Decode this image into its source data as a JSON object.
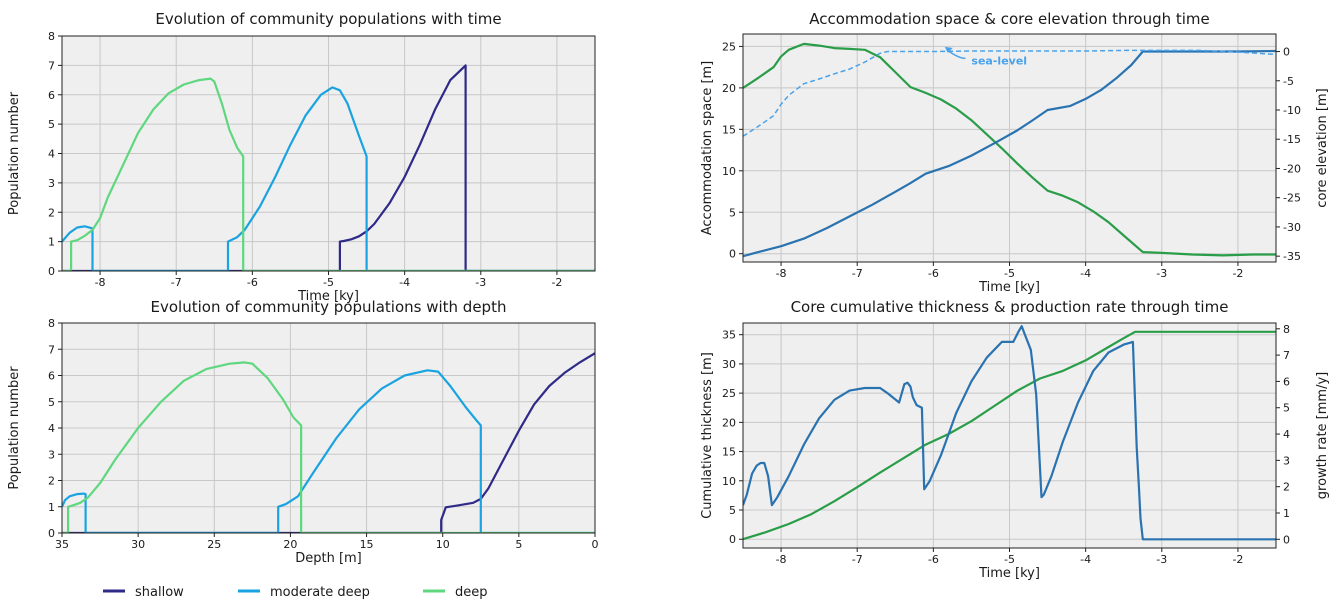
{
  "colors": {
    "shallow": "#2e2a87",
    "moderate_deep": "#1aa3e0",
    "deep": "#5fd77f",
    "green_line": "#2a9d48",
    "blue_line": "#2a73b0",
    "green_axis": "#2a9d48",
    "blue_axis": "#2a73b0",
    "sealevel": "#4aa3ea",
    "panel_bg": "#efefef",
    "grid": "#c8c8c8"
  },
  "legend": {
    "items": [
      {
        "label": "shallow",
        "color_key": "shallow"
      },
      {
        "label": "moderate deep",
        "color_key": "moderate_deep"
      },
      {
        "label": "deep",
        "color_key": "deep"
      }
    ]
  },
  "chart_data": [
    {
      "type": "line",
      "title": "Evolution of community populations with time",
      "xlabel": "Time [ky]",
      "ylabel": "Population number",
      "xlim": [
        -8.5,
        -1.5
      ],
      "ylim": [
        0,
        8
      ],
      "xticks": [
        -8,
        -7,
        -6,
        -5,
        -4,
        -3,
        -2
      ],
      "xticklabels": [
        "-8",
        "-7",
        "-6",
        "-5",
        "-4",
        "-3",
        "-2"
      ],
      "yticks": [
        0,
        1,
        2,
        3,
        4,
        5,
        6,
        7,
        8
      ],
      "yticklabels": [
        "0",
        "1",
        "2",
        "3",
        "4",
        "5",
        "6",
        "7",
        "8"
      ],
      "grid": true,
      "series": [
        {
          "name": "shallow",
          "color_key": "shallow",
          "x": [
            -8.5,
            -4.85,
            -4.85,
            -4.8,
            -4.7,
            -4.6,
            -4.5,
            -4.4,
            -4.2,
            -4.0,
            -3.8,
            -3.6,
            -3.4,
            -3.2,
            -3.2,
            -3.2,
            -1.5
          ],
          "y": [
            0,
            0,
            1.0,
            1.02,
            1.08,
            1.18,
            1.35,
            1.6,
            2.3,
            3.2,
            4.3,
            5.5,
            6.5,
            7.0,
            7.0,
            0,
            0
          ]
        },
        {
          "name": "moderate deep",
          "color_key": "moderate_deep",
          "x": [
            -8.5,
            -8.4,
            -8.3,
            -8.2,
            -8.1,
            -8.1,
            -8.1,
            -6.32,
            -6.32,
            -6.2,
            -6.1,
            -5.9,
            -5.7,
            -5.5,
            -5.3,
            -5.1,
            -4.95,
            -4.85,
            -4.75,
            -4.6,
            -4.5,
            -4.5,
            -4.5,
            -1.5
          ],
          "y": [
            1.0,
            1.3,
            1.48,
            1.52,
            1.45,
            1.2,
            0,
            0,
            1.0,
            1.15,
            1.4,
            2.2,
            3.2,
            4.3,
            5.3,
            6.0,
            6.25,
            6.15,
            5.7,
            4.6,
            3.9,
            1.5,
            0,
            0
          ]
        },
        {
          "name": "deep",
          "color_key": "deep",
          "x": [
            -8.5,
            -8.38,
            -8.38,
            -8.3,
            -8.2,
            -8.1,
            -8.0,
            -7.9,
            -7.7,
            -7.5,
            -7.3,
            -7.1,
            -6.9,
            -6.7,
            -6.55,
            -6.5,
            -6.4,
            -6.3,
            -6.2,
            -6.12,
            -6.12,
            -6.12,
            -1.5
          ],
          "y": [
            0,
            0,
            1.0,
            1.05,
            1.2,
            1.4,
            1.8,
            2.5,
            3.6,
            4.7,
            5.5,
            6.05,
            6.35,
            6.5,
            6.55,
            6.45,
            5.7,
            4.8,
            4.2,
            3.9,
            1.5,
            0,
            0
          ]
        }
      ]
    },
    {
      "type": "line",
      "title": "Evolution of community populations with depth",
      "xlabel": "Depth [m]",
      "ylabel": "Population number",
      "xlim": [
        35,
        0
      ],
      "ylim": [
        0,
        8
      ],
      "xticks": [
        35,
        30,
        25,
        20,
        15,
        10,
        5,
        0
      ],
      "xticklabels": [
        "35",
        "30",
        "25",
        "20",
        "15",
        "10",
        "5",
        "0"
      ],
      "yticks": [
        0,
        1,
        2,
        3,
        4,
        5,
        6,
        7,
        8
      ],
      "yticklabels": [
        "0",
        "1",
        "2",
        "3",
        "4",
        "5",
        "6",
        "7",
        "8"
      ],
      "grid": true,
      "series": [
        {
          "name": "shallow",
          "color_key": "shallow",
          "x": [
            35,
            10.1,
            10.1,
            9.8,
            9.0,
            8.0,
            7.5,
            7.0,
            6.0,
            5.0,
            4.0,
            3.0,
            2.0,
            1.0,
            0.0
          ],
          "y": [
            0,
            0,
            0.5,
            0.98,
            1.05,
            1.15,
            1.3,
            1.7,
            2.8,
            3.9,
            4.9,
            5.6,
            6.1,
            6.5,
            6.85
          ]
        },
        {
          "name": "moderate deep",
          "color_key": "moderate_deep",
          "x": [
            35,
            34.8,
            34.5,
            34.0,
            33.6,
            33.45,
            33.45,
            33.45,
            20.8,
            20.8,
            20.3,
            19.5,
            18.5,
            17.0,
            15.5,
            14.0,
            12.5,
            11.0,
            10.3,
            9.5,
            8.5,
            7.8,
            7.5,
            7.5,
            7.5,
            0
          ],
          "y": [
            1.0,
            1.25,
            1.4,
            1.48,
            1.5,
            1.48,
            1.0,
            0,
            0,
            1.0,
            1.1,
            1.4,
            2.3,
            3.6,
            4.7,
            5.5,
            6.0,
            6.2,
            6.15,
            5.6,
            4.8,
            4.3,
            4.1,
            1.0,
            0,
            0
          ]
        },
        {
          "name": "deep",
          "color_key": "deep",
          "x": [
            35,
            34.6,
            34.6,
            34.3,
            33.8,
            33.3,
            32.5,
            31.5,
            30.0,
            28.5,
            27.0,
            25.5,
            24.0,
            23.0,
            22.5,
            21.5,
            20.5,
            19.8,
            19.3,
            19.3,
            19.3,
            0
          ],
          "y": [
            0,
            0,
            1.0,
            1.05,
            1.15,
            1.35,
            1.9,
            2.8,
            4.0,
            5.0,
            5.8,
            6.25,
            6.45,
            6.5,
            6.45,
            5.9,
            5.1,
            4.4,
            4.1,
            1.0,
            0,
            0
          ]
        }
      ]
    },
    {
      "type": "line",
      "title": "Accommodation space & core elevation through time",
      "xlabel": "Time [ky]",
      "ylabel": "Accommodation space [m]",
      "ylabel_right": "core elevation [m]",
      "xlim": [
        -8.5,
        -1.5
      ],
      "ylim": [
        -1,
        26.5
      ],
      "ylim_right": [
        -36,
        3
      ],
      "xticks": [
        -8,
        -7,
        -6,
        -5,
        -4,
        -3,
        -2
      ],
      "xticklabels": [
        "-8",
        "-7",
        "-6",
        "-5",
        "-4",
        "-3",
        "-2"
      ],
      "yticks": [
        0,
        5,
        10,
        15,
        20,
        25
      ],
      "yticklabels": [
        "0",
        "5",
        "10",
        "15",
        "20",
        "25"
      ],
      "yticks_right": [
        0,
        -5,
        -10,
        -15,
        -20,
        -25,
        -30,
        -35
      ],
      "yticklabels_right": [
        "0",
        "-5",
        "-10",
        "-15",
        "-20",
        "-25",
        "-30",
        "-35"
      ],
      "grid": true,
      "annotation": {
        "text": "sea-level",
        "x": -5.5,
        "y_right": -2.2,
        "arrow_to_x": -5.85,
        "arrow_to_y_right": 0.8
      },
      "series": [
        {
          "name": "",
          "axis": "left",
          "color_key": "green_line",
          "style": "solid",
          "x": [
            -8.5,
            -8.3,
            -8.1,
            -8.0,
            -7.9,
            -7.7,
            -7.5,
            -7.3,
            -7.1,
            -6.9,
            -6.7,
            -6.5,
            -6.3,
            -6.1,
            -5.9,
            -5.7,
            -5.5,
            -5.3,
            -5.1,
            -4.9,
            -4.7,
            -4.5,
            -4.3,
            -4.1,
            -3.9,
            -3.7,
            -3.5,
            -3.25,
            -3.0,
            -2.6,
            -2.2,
            -1.8,
            -1.5
          ],
          "y": [
            20.0,
            21.2,
            22.5,
            23.8,
            24.6,
            25.3,
            25.1,
            24.8,
            24.7,
            24.6,
            23.7,
            21.9,
            20.1,
            19.4,
            18.6,
            17.5,
            16.1,
            14.4,
            12.7,
            10.9,
            9.2,
            7.6,
            7.0,
            6.2,
            5.1,
            3.8,
            2.2,
            0.2,
            0.1,
            -0.1,
            -0.2,
            -0.1,
            -0.1
          ]
        },
        {
          "name": "",
          "axis": "right",
          "color_key": "blue_line",
          "style": "solid",
          "x": [
            -8.5,
            -8.3,
            -8.0,
            -7.7,
            -7.4,
            -7.1,
            -6.8,
            -6.5,
            -6.3,
            -6.1,
            -5.8,
            -5.5,
            -5.2,
            -4.9,
            -4.7,
            -4.5,
            -4.2,
            -4.0,
            -3.8,
            -3.6,
            -3.4,
            -3.25,
            -3.0,
            -2.5,
            -2.0,
            -1.5
          ],
          "y": [
            -35.0,
            -34.3,
            -33.3,
            -32.0,
            -30.2,
            -28.2,
            -26.2,
            -24.0,
            -22.5,
            -20.9,
            -19.6,
            -17.8,
            -15.7,
            -13.5,
            -11.8,
            -10.0,
            -9.3,
            -8.1,
            -6.6,
            -4.6,
            -2.3,
            0.0,
            0.0,
            0.0,
            0.0,
            0.1
          ]
        },
        {
          "name": "sea-level",
          "axis": "right",
          "color_key": "sealevel",
          "style": "dashed",
          "x": [
            -8.5,
            -8.3,
            -8.1,
            -8.0,
            -7.9,
            -7.7,
            -7.5,
            -7.3,
            -7.1,
            -6.9,
            -6.7,
            -6.6,
            -6.4,
            -6.0,
            -5.5,
            -5.0,
            -4.5,
            -4.0,
            -3.5,
            -3.0,
            -2.5,
            -2.0,
            -1.5
          ],
          "y": [
            -14.5,
            -12.8,
            -11.0,
            -9.0,
            -7.5,
            -5.5,
            -4.7,
            -3.8,
            -3.0,
            -1.8,
            -0.3,
            0.0,
            0.0,
            0.0,
            0.1,
            0.1,
            0.1,
            0.1,
            0.2,
            0.2,
            0.2,
            -0.1,
            -0.5
          ]
        }
      ]
    },
    {
      "type": "line",
      "title": "Core cumulative thickness & production rate through time",
      "xlabel": "Time [ky]",
      "ylabel": "Cumulative thickness [m]",
      "ylabel_right": "growth rate [mm/y]",
      "xlim": [
        -8.5,
        -1.5
      ],
      "ylim": [
        -1.5,
        37
      ],
      "ylim_right": [
        -0.33,
        8.22
      ],
      "xticks": [
        -8,
        -7,
        -6,
        -5,
        -4,
        -3,
        -2
      ],
      "xticklabels": [
        "-8",
        "-7",
        "-6",
        "-5",
        "-4",
        "-3",
        "-2"
      ],
      "yticks": [
        0,
        5,
        10,
        15,
        20,
        25,
        30,
        35
      ],
      "yticklabels": [
        "0",
        "5",
        "10",
        "15",
        "20",
        "25",
        "30",
        "35"
      ],
      "yticks_right": [
        0,
        1,
        2,
        3,
        4,
        5,
        6,
        7,
        8
      ],
      "yticklabels_right": [
        "0",
        "1",
        "2",
        "3",
        "4",
        "5",
        "6",
        "7",
        "8"
      ],
      "grid": true,
      "series": [
        {
          "name": "",
          "axis": "left",
          "color_key": "green_line",
          "style": "solid",
          "x": [
            -8.5,
            -8.2,
            -7.9,
            -7.6,
            -7.3,
            -7.0,
            -6.7,
            -6.4,
            -6.1,
            -5.8,
            -5.5,
            -5.2,
            -4.9,
            -4.6,
            -4.3,
            -4.0,
            -3.7,
            -3.5,
            -3.35,
            -3.0,
            -2.5,
            -2.0,
            -1.5
          ],
          "y": [
            0.0,
            1.2,
            2.6,
            4.3,
            6.5,
            8.9,
            11.4,
            13.8,
            16.2,
            18.0,
            20.2,
            22.8,
            25.4,
            27.5,
            28.8,
            30.6,
            32.9,
            34.4,
            35.5,
            35.5,
            35.5,
            35.5,
            35.5
          ]
        },
        {
          "name": "",
          "axis": "right",
          "color_key": "blue_line",
          "style": "solid",
          "x": [
            -8.5,
            -8.45,
            -8.38,
            -8.32,
            -8.27,
            -8.22,
            -8.17,
            -8.12,
            -8.05,
            -7.9,
            -7.7,
            -7.5,
            -7.3,
            -7.1,
            -6.9,
            -6.7,
            -6.6,
            -6.45,
            -6.38,
            -6.34,
            -6.3,
            -6.27,
            -6.22,
            -6.15,
            -6.12,
            -6.05,
            -5.9,
            -5.7,
            -5.5,
            -5.3,
            -5.1,
            -4.95,
            -4.88,
            -4.84,
            -4.8,
            -4.72,
            -4.65,
            -4.58,
            -4.55,
            -4.52,
            -4.45,
            -4.3,
            -4.1,
            -3.9,
            -3.7,
            -3.5,
            -3.38,
            -3.33,
            -3.3,
            -3.28,
            -3.25,
            -3.0,
            -2.5,
            -2.0,
            -1.5
          ],
          "y": [
            1.3,
            1.7,
            2.5,
            2.8,
            2.9,
            2.9,
            2.4,
            1.3,
            1.6,
            2.4,
            3.6,
            4.6,
            5.3,
            5.65,
            5.75,
            5.75,
            5.55,
            5.2,
            5.9,
            5.95,
            5.8,
            5.4,
            5.1,
            5.0,
            1.9,
            2.2,
            3.2,
            4.8,
            6.0,
            6.9,
            7.5,
            7.5,
            7.9,
            8.1,
            7.8,
            7.2,
            5.5,
            1.6,
            1.7,
            1.9,
            2.4,
            3.7,
            5.2,
            6.4,
            7.1,
            7.4,
            7.5,
            3.5,
            2.0,
            0.8,
            0.0,
            0.0,
            0.0,
            0.0,
            0.0
          ]
        }
      ]
    }
  ]
}
